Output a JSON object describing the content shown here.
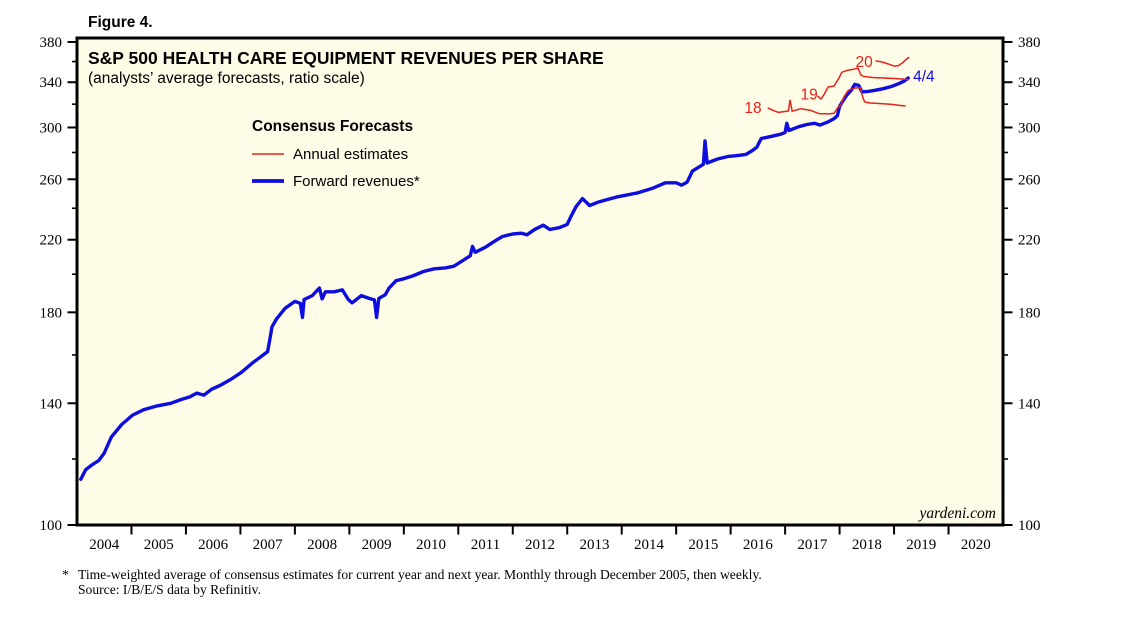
{
  "figure_label": "Figure 4.",
  "header": {
    "title": "S&P 500 HEALTH CARE EQUIPMENT REVENUES PER SHARE",
    "subtitle": "(analysts’ average forecasts, ratio scale)"
  },
  "legend": {
    "heading": "Consensus Forecasts",
    "items": [
      {
        "label": "Annual estimates",
        "color": "#e5231c",
        "thickness": 1.5
      },
      {
        "label": "Forward revenues*",
        "color": "#0d0de0",
        "thickness": 3.4
      }
    ]
  },
  "watermark": "yardeni.com",
  "footnote": {
    "marker": "*",
    "line1": "Time-weighted average of consensus estimates for current year and next year. Monthly through December 2005, then weekly.",
    "line2": "Source: I/B/E/S data by Refinitiv."
  },
  "colors": {
    "plot_bg": "#fefce6",
    "frame": "#000000",
    "blue": "#0d0de0",
    "red": "#e5231c",
    "text": "#000000"
  },
  "chart_data": {
    "type": "line",
    "title": "S&P 500 HEALTH CARE EQUIPMENT REVENUES PER SHARE",
    "subtitle": "(analysts’ average forecasts, ratio scale)",
    "y_scale": "log",
    "x_domain": [
      2004,
      2021
    ],
    "y_ticks_major": [
      100,
      140,
      180,
      220,
      260,
      300,
      340,
      380
    ],
    "y_ticks_minor": [
      120,
      160,
      200,
      240,
      280,
      320,
      360
    ],
    "x_tick_years": [
      2005,
      2006,
      2007,
      2008,
      2009,
      2010,
      2011,
      2012,
      2013,
      2014,
      2015,
      2016,
      2017,
      2018,
      2019,
      2020
    ],
    "x_year_labels": [
      "2004",
      "2005",
      "2006",
      "2007",
      "2008",
      "2009",
      "2010",
      "2011",
      "2012",
      "2013",
      "2014",
      "2015",
      "2016",
      "2017",
      "2018",
      "2019",
      "2020"
    ],
    "legend_position": "upper-left-inside",
    "grid": false,
    "series": [
      {
        "name": "Forward revenues",
        "legend": "Forward revenues*",
        "color": "#0d0de0",
        "width": 3.4,
        "points": [
          [
            2004.07,
            113.5
          ],
          [
            2004.16,
            116.5
          ],
          [
            2004.27,
            118
          ],
          [
            2004.4,
            119.5
          ],
          [
            2004.5,
            122
          ],
          [
            2004.63,
            127.5
          ],
          [
            2004.82,
            132
          ],
          [
            2005.02,
            135.5
          ],
          [
            2005.22,
            137.5
          ],
          [
            2005.47,
            139
          ],
          [
            2005.72,
            140
          ],
          [
            2005.92,
            141.5
          ],
          [
            2006.07,
            142.5
          ],
          [
            2006.2,
            144
          ],
          [
            2006.33,
            143.2
          ],
          [
            2006.47,
            145.5
          ],
          [
            2006.62,
            147
          ],
          [
            2006.82,
            149.5
          ],
          [
            2007.02,
            152.5
          ],
          [
            2007.22,
            156.5
          ],
          [
            2007.42,
            160
          ],
          [
            2007.5,
            161.5
          ],
          [
            2007.54,
            167
          ],
          [
            2007.58,
            173
          ],
          [
            2007.67,
            177
          ],
          [
            2007.82,
            182
          ],
          [
            2008.0,
            185.5
          ],
          [
            2008.1,
            184.5
          ],
          [
            2008.14,
            177.5
          ],
          [
            2008.17,
            186.5
          ],
          [
            2008.32,
            188.5
          ],
          [
            2008.45,
            192.5
          ],
          [
            2008.5,
            186.8
          ],
          [
            2008.56,
            190.5
          ],
          [
            2008.72,
            190.5
          ],
          [
            2008.87,
            191.5
          ],
          [
            2008.98,
            186.5
          ],
          [
            2009.05,
            184.8
          ],
          [
            2009.22,
            188.5
          ],
          [
            2009.37,
            187
          ],
          [
            2009.46,
            186.3
          ],
          [
            2009.5,
            177.5
          ],
          [
            2009.54,
            187
          ],
          [
            2009.66,
            189
          ],
          [
            2009.73,
            192.5
          ],
          [
            2009.86,
            196.5
          ],
          [
            2010.0,
            197.5
          ],
          [
            2010.16,
            199
          ],
          [
            2010.36,
            201.5
          ],
          [
            2010.56,
            203
          ],
          [
            2010.76,
            203.5
          ],
          [
            2010.92,
            204.5
          ],
          [
            2011.1,
            208
          ],
          [
            2011.22,
            210.5
          ],
          [
            2011.26,
            216
          ],
          [
            2011.31,
            212.5
          ],
          [
            2011.5,
            215.5
          ],
          [
            2011.66,
            219
          ],
          [
            2011.81,
            222
          ],
          [
            2012.0,
            223.5
          ],
          [
            2012.16,
            224
          ],
          [
            2012.26,
            223
          ],
          [
            2012.41,
            226.5
          ],
          [
            2012.56,
            229
          ],
          [
            2012.68,
            226.3
          ],
          [
            2012.86,
            227.5
          ],
          [
            2013.0,
            229.5
          ],
          [
            2013.06,
            234
          ],
          [
            2013.16,
            241
          ],
          [
            2013.28,
            246.5
          ],
          [
            2013.41,
            241.8
          ],
          [
            2013.56,
            244
          ],
          [
            2013.73,
            245.8
          ],
          [
            2013.9,
            247.5
          ],
          [
            2014.1,
            249
          ],
          [
            2014.3,
            250.5
          ],
          [
            2014.56,
            253.5
          ],
          [
            2014.8,
            257.5
          ],
          [
            2015.0,
            257.5
          ],
          [
            2015.1,
            255.8
          ],
          [
            2015.2,
            258
          ],
          [
            2015.3,
            266
          ],
          [
            2015.44,
            269.5
          ],
          [
            2015.5,
            271
          ],
          [
            2015.53,
            289
          ],
          [
            2015.57,
            272
          ],
          [
            2015.76,
            275
          ],
          [
            2015.96,
            277
          ],
          [
            2016.1,
            277.5
          ],
          [
            2016.28,
            278.5
          ],
          [
            2016.4,
            281.5
          ],
          [
            2016.48,
            284
          ],
          [
            2016.56,
            291
          ],
          [
            2016.72,
            292.5
          ],
          [
            2016.92,
            294.5
          ],
          [
            2017.0,
            296
          ],
          [
            2017.03,
            303.5
          ],
          [
            2017.07,
            297.5
          ],
          [
            2017.24,
            300.5
          ],
          [
            2017.4,
            302.5
          ],
          [
            2017.54,
            303.5
          ],
          [
            2017.64,
            302
          ],
          [
            2017.78,
            304.5
          ],
          [
            2017.9,
            307.5
          ],
          [
            2017.96,
            310
          ],
          [
            2018.0,
            318
          ],
          [
            2018.05,
            322
          ],
          [
            2018.13,
            328
          ],
          [
            2018.22,
            333
          ],
          [
            2018.28,
            338
          ],
          [
            2018.35,
            337
          ],
          [
            2018.41,
            331
          ],
          [
            2018.52,
            331.5
          ],
          [
            2018.65,
            332.5
          ],
          [
            2018.8,
            334
          ],
          [
            2018.95,
            336
          ],
          [
            2019.08,
            338.5
          ],
          [
            2019.18,
            341
          ],
          [
            2019.26,
            344
          ]
        ]
      },
      {
        "name": "2018 annual estimates",
        "legend": "Annual estimates",
        "color": "#e5231c",
        "width": 1.5,
        "points": [
          [
            2016.69,
            316.5
          ],
          [
            2016.78,
            314.5
          ],
          [
            2016.88,
            312.8
          ],
          [
            2016.98,
            313.5
          ],
          [
            2017.06,
            314
          ],
          [
            2017.09,
            323.5
          ],
          [
            2017.13,
            313.8
          ],
          [
            2017.29,
            316
          ],
          [
            2017.47,
            314.5
          ],
          [
            2017.62,
            311.8
          ],
          [
            2017.8,
            311.5
          ],
          [
            2017.9,
            312
          ],
          [
            2017.96,
            316.5
          ],
          [
            2018.02,
            319
          ],
          [
            2018.08,
            326.5
          ],
          [
            2018.16,
            332.5
          ],
          [
            2018.28,
            334.5
          ],
          [
            2018.38,
            335
          ],
          [
            2018.42,
            327
          ],
          [
            2018.46,
            322
          ],
          [
            2018.56,
            321
          ],
          [
            2018.76,
            320.5
          ],
          [
            2018.96,
            319.8
          ],
          [
            2019.12,
            318.8
          ],
          [
            2019.2,
            318.5
          ]
        ]
      },
      {
        "name": "2019 annual estimates",
        "legend": "Annual estimates",
        "color": "#e5231c",
        "width": 1.5,
        "points": [
          [
            2017.6,
            327
          ],
          [
            2017.66,
            324.5
          ],
          [
            2017.72,
            329
          ],
          [
            2017.79,
            335.5
          ],
          [
            2017.9,
            336.5
          ],
          [
            2017.99,
            344
          ],
          [
            2018.04,
            349.5
          ],
          [
            2018.15,
            351.5
          ],
          [
            2018.26,
            352.5
          ],
          [
            2018.34,
            353.5
          ],
          [
            2018.39,
            347
          ],
          [
            2018.44,
            345.5
          ],
          [
            2018.6,
            344.5
          ],
          [
            2018.8,
            344
          ],
          [
            2019.0,
            343.5
          ],
          [
            2019.15,
            343
          ],
          [
            2019.27,
            342.5
          ]
        ]
      },
      {
        "name": "2020 annual estimates",
        "legend": "Annual estimates",
        "color": "#e5231c",
        "width": 1.5,
        "points": [
          [
            2018.67,
            360.5
          ],
          [
            2018.78,
            359.5
          ],
          [
            2018.9,
            357.5
          ],
          [
            2019.0,
            355.5
          ],
          [
            2019.08,
            356
          ],
          [
            2019.16,
            359
          ],
          [
            2019.22,
            362
          ],
          [
            2019.27,
            364
          ]
        ]
      }
    ],
    "annotations": [
      {
        "text": "18",
        "color": "#e5231c",
        "t": 2016.41,
        "v": 317,
        "anchor": "middle"
      },
      {
        "text": "19",
        "color": "#e5231c",
        "t": 2017.44,
        "v": 329,
        "anchor": "middle"
      },
      {
        "text": "20",
        "color": "#e5231c",
        "t": 2018.45,
        "v": 360,
        "anchor": "middle"
      },
      {
        "text": "4/4",
        "color": "#0d0de0",
        "t": 2019.35,
        "v": 346,
        "anchor": "start"
      }
    ]
  }
}
